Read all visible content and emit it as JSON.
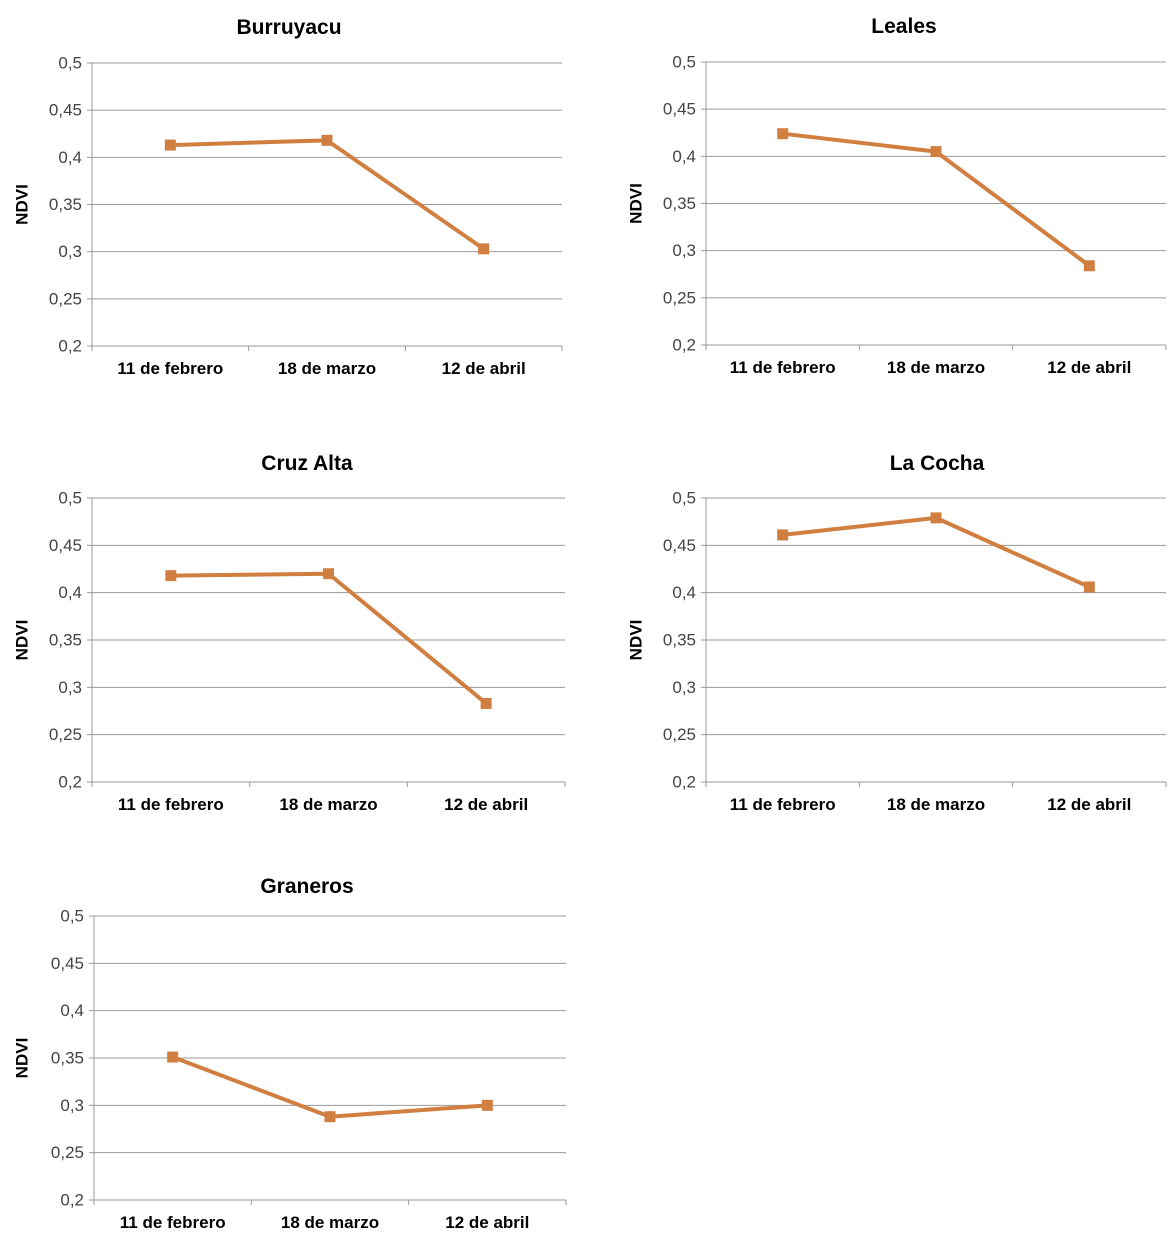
{
  "colors": {
    "series": "#D07F41",
    "grid": "#9a9a9a"
  },
  "chart_data": [
    {
      "type": "line",
      "title": "Burruyacu",
      "ylabel": "NDVI",
      "categories": [
        "11 de febrero",
        "18 de marzo",
        "12 de abril"
      ],
      "values": [
        0.413,
        0.418,
        0.303
      ],
      "ylim": [
        0.2,
        0.5
      ],
      "yticks": [
        "0,2",
        "0,25",
        "0,3",
        "0,35",
        "0,4",
        "0,45",
        "0,5"
      ],
      "grid": true
    },
    {
      "type": "line",
      "title": "Leales",
      "ylabel": "NDVI",
      "categories": [
        "11 de febrero",
        "18 de marzo",
        "12 de abril"
      ],
      "values": [
        0.424,
        0.405,
        0.284
      ],
      "ylim": [
        0.2,
        0.5
      ],
      "yticks": [
        "0,2",
        "0,25",
        "0,3",
        "0,35",
        "0,4",
        "0,45",
        "0,5"
      ],
      "grid": true
    },
    {
      "type": "line",
      "title": "Cruz Alta",
      "ylabel": "NDVI",
      "categories": [
        "11 de febrero",
        "18 de marzo",
        "12 de abril"
      ],
      "values": [
        0.418,
        0.42,
        0.283
      ],
      "ylim": [
        0.2,
        0.5
      ],
      "yticks": [
        "0,2",
        "0,25",
        "0,3",
        "0,35",
        "0,4",
        "0,45",
        "0,5"
      ],
      "grid": true
    },
    {
      "type": "line",
      "title": "La Cocha",
      "ylabel": "NDVI",
      "categories": [
        "11 de febrero",
        "18 de marzo",
        "12 de abril"
      ],
      "values": [
        0.461,
        0.479,
        0.406
      ],
      "ylim": [
        0.2,
        0.5
      ],
      "yticks": [
        "0,2",
        "0,25",
        "0,3",
        "0,35",
        "0,4",
        "0,45",
        "0,5"
      ],
      "grid": true
    },
    {
      "type": "line",
      "title": "Graneros",
      "ylabel": "NDVI",
      "categories": [
        "11 de febrero",
        "18 de marzo",
        "12 de abril"
      ],
      "values": [
        0.351,
        0.288,
        0.3
      ],
      "ylim": [
        0.2,
        0.5
      ],
      "yticks": [
        "0,2",
        "0,25",
        "0,3",
        "0,35",
        "0,4",
        "0,45",
        "0,5"
      ],
      "grid": true
    }
  ]
}
